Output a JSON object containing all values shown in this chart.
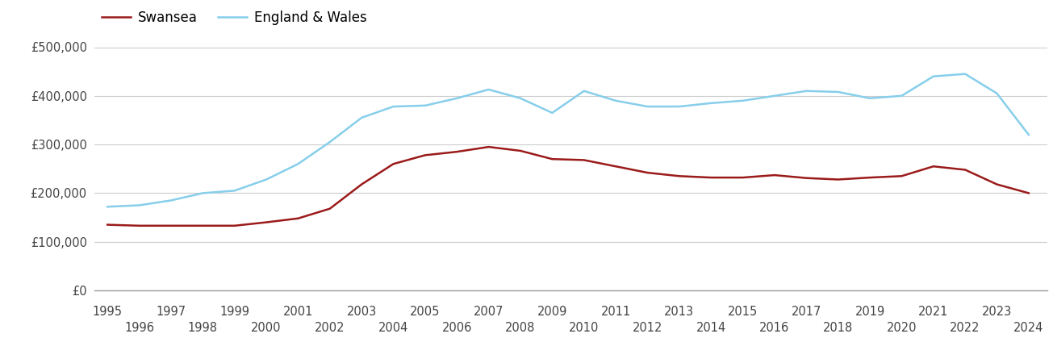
{
  "years": [
    1995,
    1996,
    1997,
    1998,
    1999,
    2000,
    2001,
    2002,
    2003,
    2004,
    2005,
    2006,
    2007,
    2008,
    2009,
    2010,
    2011,
    2012,
    2013,
    2014,
    2015,
    2016,
    2017,
    2018,
    2019,
    2020,
    2021,
    2022,
    2023,
    2024
  ],
  "swansea": [
    135000,
    133000,
    133000,
    133000,
    133000,
    140000,
    148000,
    168000,
    218000,
    260000,
    278000,
    285000,
    295000,
    287000,
    270000,
    268000,
    255000,
    242000,
    235000,
    232000,
    232000,
    237000,
    231000,
    228000,
    232000,
    235000,
    255000,
    248000,
    218000,
    200000
  ],
  "england_wales": [
    172000,
    175000,
    185000,
    200000,
    205000,
    228000,
    260000,
    305000,
    355000,
    378000,
    380000,
    395000,
    413000,
    395000,
    365000,
    410000,
    390000,
    378000,
    378000,
    385000,
    390000,
    400000,
    410000,
    408000,
    395000,
    400000,
    440000,
    445000,
    405000,
    320000
  ],
  "swansea_color": "#9b1a1a",
  "england_wales_color": "#87ceeb",
  "background_color": "#ffffff",
  "grid_color": "#cccccc",
  "ylim": [
    0,
    500000
  ],
  "yticks": [
    0,
    100000,
    200000,
    300000,
    400000,
    500000
  ],
  "ytick_labels": [
    "£0",
    "£100,000",
    "£200,000",
    "£300,000",
    "£400,000",
    "£500,000"
  ],
  "legend_swansea": "Swansea",
  "legend_england_wales": "England & Wales",
  "linewidth": 1.8,
  "odd_years": [
    1995,
    1997,
    1999,
    2001,
    2003,
    2005,
    2007,
    2009,
    2011,
    2013,
    2015,
    2017,
    2019,
    2021,
    2023
  ],
  "even_years": [
    1996,
    1998,
    2000,
    2002,
    2004,
    2006,
    2008,
    2010,
    2012,
    2014,
    2016,
    2018,
    2020,
    2022,
    2024
  ],
  "tick_fontsize": 10.5,
  "tick_color": "#444444"
}
